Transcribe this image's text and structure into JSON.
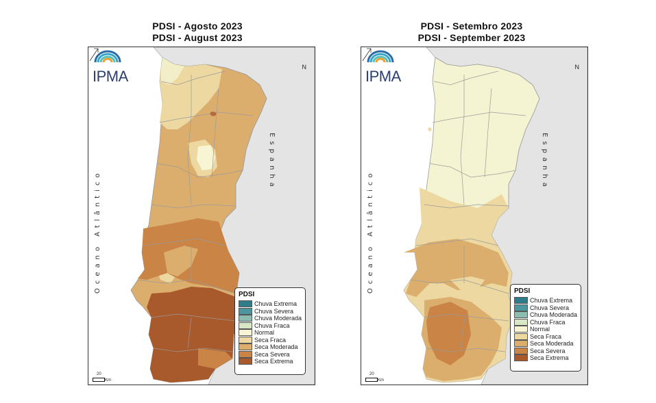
{
  "panels": [
    {
      "id": "left",
      "title_pt": "PDSI - Agosto 2023",
      "title_en": "PDSI - August 2023"
    },
    {
      "id": "right",
      "title_pt": "PDSI - Setembro 2023",
      "title_en": "PDSI - September 2023"
    }
  ],
  "map_labels": {
    "logo": "IPMA",
    "ocean": "Oceano Atlântico",
    "spain": "Espanha",
    "north": "N",
    "scale_value": "20",
    "scale_unit": "Km"
  },
  "legend": {
    "title": "PDSI",
    "classes": [
      {
        "label": "Chuva Extrema",
        "color": "#2f7c8a"
      },
      {
        "label": "Chuva Severa",
        "color": "#4b979d"
      },
      {
        "label": "Chuva Moderada",
        "color": "#8cbcb0"
      },
      {
        "label": "Chuva Fraca",
        "color": "#d8e8c6"
      },
      {
        "label": "Normal",
        "color": "#f7f5d3"
      },
      {
        "label": "Seca Fraca",
        "color": "#ecd8a0"
      },
      {
        "label": "Seca Moderada",
        "color": "#dcae6e"
      },
      {
        "label": "Seca Severa",
        "color": "#c98446"
      },
      {
        "label": "Seca Extrema",
        "color": "#a85a2c"
      }
    ]
  },
  "colors": {
    "spain_fill": "#e4e4e4",
    "ocean_fill": "#ffffff",
    "border": "#a8a8a8"
  }
}
